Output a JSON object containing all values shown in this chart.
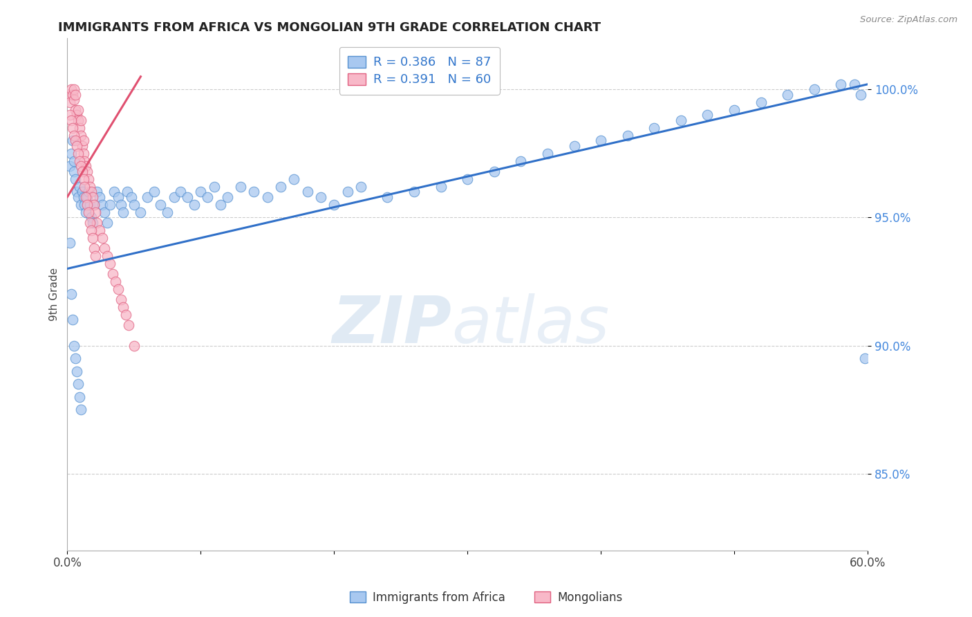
{
  "title": "IMMIGRANTS FROM AFRICA VS MONGOLIAN 9TH GRADE CORRELATION CHART",
  "source_text": "Source: ZipAtlas.com",
  "ylabel": "9th Grade",
  "xlim": [
    0.0,
    0.6
  ],
  "ylim": [
    0.82,
    1.02
  ],
  "xtick_positions": [
    0.0,
    0.1,
    0.2,
    0.3,
    0.4,
    0.5,
    0.6
  ],
  "xtick_labels": [
    "0.0%",
    "",
    "",
    "",
    "",
    "",
    "60.0%"
  ],
  "ytick_positions": [
    0.85,
    0.9,
    0.95,
    1.0
  ],
  "ytick_labels": [
    "85.0%",
    "90.0%",
    "95.0%",
    "100.0%"
  ],
  "blue_R": 0.386,
  "blue_N": 87,
  "pink_R": 0.391,
  "pink_N": 60,
  "blue_fill": "#A8C8F0",
  "blue_edge": "#5590D0",
  "pink_fill": "#F8B8C8",
  "pink_edge": "#E06080",
  "blue_line": "#3070C8",
  "pink_line": "#E05070",
  "legend_blue": "Immigrants from Africa",
  "legend_pink": "Mongolians",
  "blue_line_x0": 0.0,
  "blue_line_y0": 0.93,
  "blue_line_x1": 0.6,
  "blue_line_y1": 1.002,
  "pink_line_x0": 0.0,
  "pink_line_y0": 0.958,
  "pink_line_x1": 0.055,
  "pink_line_y1": 1.005,
  "blue_x": [
    0.002,
    0.003,
    0.004,
    0.005,
    0.005,
    0.006,
    0.007,
    0.008,
    0.009,
    0.01,
    0.011,
    0.012,
    0.013,
    0.014,
    0.015,
    0.016,
    0.017,
    0.018,
    0.019,
    0.02,
    0.022,
    0.024,
    0.026,
    0.028,
    0.03,
    0.032,
    0.035,
    0.038,
    0.04,
    0.042,
    0.045,
    0.048,
    0.05,
    0.055,
    0.06,
    0.065,
    0.07,
    0.075,
    0.08,
    0.085,
    0.09,
    0.095,
    0.1,
    0.105,
    0.11,
    0.115,
    0.12,
    0.13,
    0.14,
    0.15,
    0.16,
    0.17,
    0.18,
    0.19,
    0.2,
    0.21,
    0.22,
    0.24,
    0.26,
    0.28,
    0.3,
    0.32,
    0.34,
    0.36,
    0.38,
    0.4,
    0.42,
    0.44,
    0.46,
    0.48,
    0.5,
    0.52,
    0.54,
    0.56,
    0.58,
    0.59,
    0.595,
    0.598,
    0.002,
    0.003,
    0.004,
    0.005,
    0.006,
    0.007,
    0.008,
    0.009,
    0.01
  ],
  "blue_y": [
    0.97,
    0.975,
    0.98,
    0.968,
    0.972,
    0.965,
    0.96,
    0.958,
    0.962,
    0.955,
    0.96,
    0.958,
    0.955,
    0.952,
    0.958,
    0.96,
    0.955,
    0.95,
    0.948,
    0.955,
    0.96,
    0.958,
    0.955,
    0.952,
    0.948,
    0.955,
    0.96,
    0.958,
    0.955,
    0.952,
    0.96,
    0.958,
    0.955,
    0.952,
    0.958,
    0.96,
    0.955,
    0.952,
    0.958,
    0.96,
    0.958,
    0.955,
    0.96,
    0.958,
    0.962,
    0.955,
    0.958,
    0.962,
    0.96,
    0.958,
    0.962,
    0.965,
    0.96,
    0.958,
    0.955,
    0.96,
    0.962,
    0.958,
    0.96,
    0.962,
    0.965,
    0.968,
    0.972,
    0.975,
    0.978,
    0.98,
    0.982,
    0.985,
    0.988,
    0.99,
    0.992,
    0.995,
    0.998,
    1.0,
    1.002,
    1.002,
    0.998,
    0.895,
    0.94,
    0.92,
    0.91,
    0.9,
    0.895,
    0.89,
    0.885,
    0.88,
    0.875
  ],
  "pink_x": [
    0.001,
    0.002,
    0.003,
    0.004,
    0.005,
    0.005,
    0.006,
    0.006,
    0.007,
    0.008,
    0.008,
    0.009,
    0.01,
    0.01,
    0.011,
    0.012,
    0.012,
    0.013,
    0.014,
    0.015,
    0.016,
    0.017,
    0.018,
    0.019,
    0.02,
    0.021,
    0.022,
    0.024,
    0.026,
    0.028,
    0.03,
    0.032,
    0.034,
    0.036,
    0.038,
    0.04,
    0.042,
    0.044,
    0.046,
    0.05,
    0.002,
    0.003,
    0.004,
    0.005,
    0.006,
    0.007,
    0.008,
    0.009,
    0.01,
    0.011,
    0.012,
    0.013,
    0.014,
    0.015,
    0.016,
    0.017,
    0.018,
    0.019,
    0.02,
    0.021
  ],
  "pink_y": [
    0.998,
    0.995,
    1.0,
    0.998,
    0.996,
    1.0,
    0.992,
    0.998,
    0.99,
    0.988,
    0.992,
    0.985,
    0.982,
    0.988,
    0.978,
    0.975,
    0.98,
    0.972,
    0.97,
    0.968,
    0.965,
    0.962,
    0.96,
    0.958,
    0.955,
    0.952,
    0.948,
    0.945,
    0.942,
    0.938,
    0.935,
    0.932,
    0.928,
    0.925,
    0.922,
    0.918,
    0.915,
    0.912,
    0.908,
    0.9,
    0.99,
    0.988,
    0.985,
    0.982,
    0.98,
    0.978,
    0.975,
    0.972,
    0.97,
    0.968,
    0.965,
    0.962,
    0.958,
    0.955,
    0.952,
    0.948,
    0.945,
    0.942,
    0.938,
    0.935
  ]
}
